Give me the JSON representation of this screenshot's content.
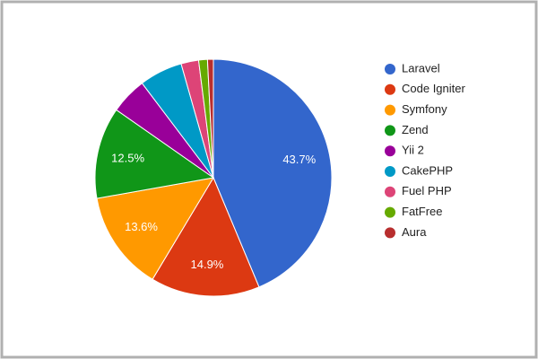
{
  "chart_data": {
    "type": "pie",
    "categories": [
      "Laravel",
      "Code Igniter",
      "Symfony",
      "Zend",
      "Yii 2",
      "CakePHP",
      "Fuel PHP",
      "FatFree",
      "Aura"
    ],
    "values": [
      43.7,
      14.9,
      13.6,
      12.5,
      5.0,
      5.9,
      2.4,
      1.2,
      0.8
    ],
    "value_labels": [
      "43.7%",
      "14.9%",
      "13.6%",
      "12.5%",
      null,
      null,
      null,
      null,
      null
    ],
    "colors": [
      "#3366cc",
      "#dc3912",
      "#ff9900",
      "#109618",
      "#990099",
      "#0099c6",
      "#dd4477",
      "#66aa00",
      "#b82e2e"
    ],
    "legend": "right"
  }
}
